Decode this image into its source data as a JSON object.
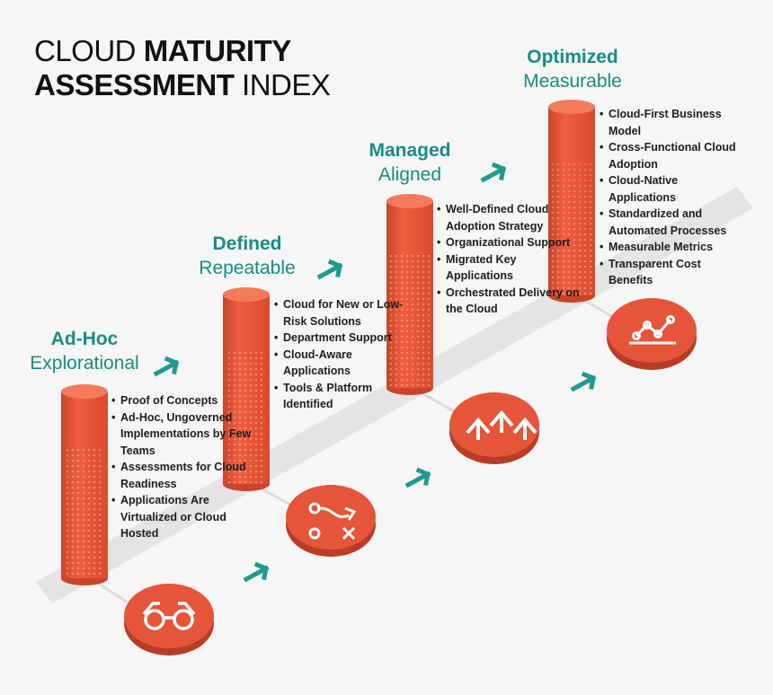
{
  "title": {
    "line1": {
      "regular": "CLOUD",
      "bold": "MATURITY"
    },
    "line2": {
      "bold": "ASSESSMENT",
      "regular": "INDEX"
    }
  },
  "stages": [
    {
      "name": "Ad-Hoc",
      "subtitle": "Explorational",
      "bullets": [
        "Proof of Concepts",
        "Ad-Hoc, Ungoverned Implementations by Few Teams",
        "Assessments for Cloud Readiness",
        "Applications Are Virtualized or Cloud Hosted"
      ]
    },
    {
      "name": "Defined",
      "subtitle": "Repeatable",
      "bullets": [
        "Cloud for New or Low-Risk Solutions",
        "Department Support",
        "Cloud-Aware Applications",
        "Tools & Platform Identified"
      ]
    },
    {
      "name": "Managed",
      "subtitle": "Aligned",
      "bullets": [
        "Well-Defined Cloud Adoption Strategy",
        "Organizational Support",
        "Migrated Key Applications",
        "Orchestrated Delivery on the Cloud"
      ]
    },
    {
      "name": "Optimized",
      "subtitle": "Measurable",
      "bullets": [
        "Cloud-First Business Model",
        "Cross-Functional Cloud Adoption",
        "Cloud-Native Applications",
        "Standardized and Automated Processes",
        "Measurable Metrics",
        "Transparent Cost Benefits"
      ]
    }
  ]
}
